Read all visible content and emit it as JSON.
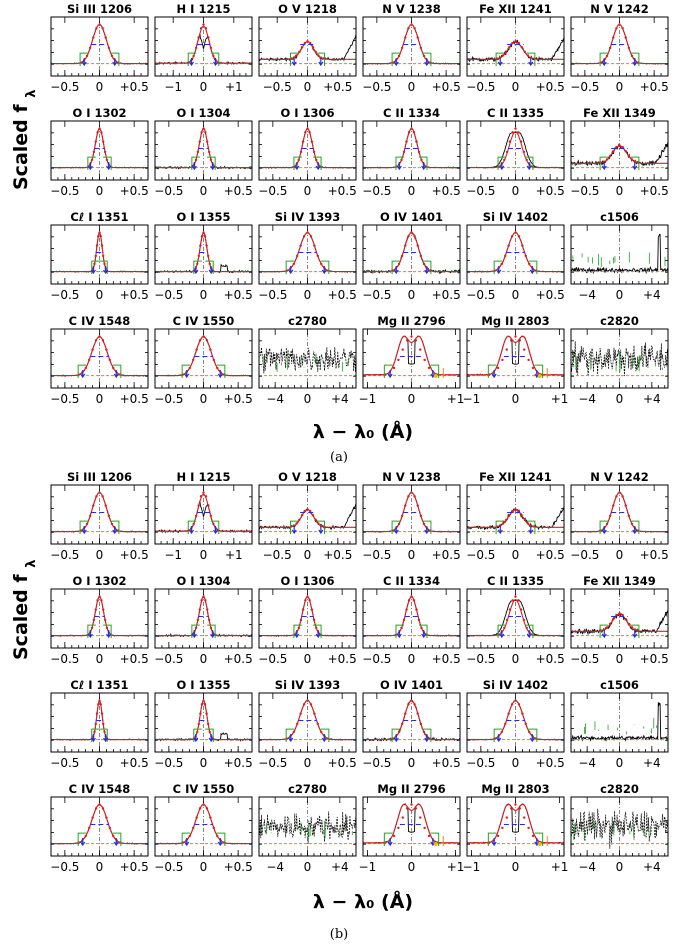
{
  "colors": {
    "data": "#000000",
    "fit": "#d62020",
    "centroid": "#2b2bd8",
    "background": "#e08a1e",
    "window": "#25a325",
    "marker": "#e0c000"
  },
  "chart_data": [
    {
      "type": "line",
      "label": "(a)",
      "ylabel": "Scaled f",
      "ylabel_sub": "λ",
      "xlabel": "λ − λ₀  (Å)",
      "grid": false,
      "panels": [
        {
          "title": "Si III 1206",
          "xlim": [
            -0.7,
            0.7
          ],
          "ticks": [
            -0.5,
            0,
            0.5
          ],
          "tick_labels": [
            "−0.5",
            "0",
            "+0.5"
          ],
          "kind": "line",
          "center": 0,
          "sigma": 0.1,
          "noise": 0.01
        },
        {
          "title": "H I 1215",
          "xlim": [
            -1.6,
            1.6
          ],
          "ticks": [
            -1,
            0,
            1
          ],
          "tick_labels": [
            "−1",
            "0",
            "+1"
          ],
          "kind": "lya",
          "center": 0,
          "sigma": 0.18,
          "noise": 0.02
        },
        {
          "title": "O V 1218",
          "xlim": [
            -0.8,
            0.8
          ],
          "ticks": [
            -0.5,
            0,
            0.5
          ],
          "tick_labels": [
            "−0.5",
            "0",
            "+0.5"
          ],
          "kind": "weak",
          "center": 0,
          "sigma": 0.1,
          "noise": 0.03
        },
        {
          "title": "N V 1238",
          "xlim": [
            -0.7,
            0.7
          ],
          "ticks": [
            -0.5,
            0,
            0.5
          ],
          "tick_labels": [
            "−0.5",
            "0",
            "+0.5"
          ],
          "kind": "line",
          "center": 0,
          "sigma": 0.1,
          "noise": 0.01
        },
        {
          "title": "Fe XII 1241",
          "xlim": [
            -0.7,
            0.7
          ],
          "ticks": [
            -0.5,
            0,
            0.5
          ],
          "tick_labels": [
            "−0.5",
            "0",
            "+0.5"
          ],
          "kind": "weak",
          "center": 0,
          "sigma": 0.1,
          "noise": 0.04
        },
        {
          "title": "N V 1242",
          "xlim": [
            -0.7,
            0.7
          ],
          "ticks": [
            -0.5,
            0,
            0.5
          ],
          "tick_labels": [
            "−0.5",
            "0",
            "+0.5"
          ],
          "kind": "line",
          "center": 0,
          "sigma": 0.1,
          "noise": 0.01
        },
        {
          "title": "O I 1302",
          "xlim": [
            -0.7,
            0.7
          ],
          "ticks": [
            -0.5,
            0,
            0.5
          ],
          "tick_labels": [
            "−0.5",
            "0",
            "+0.5"
          ],
          "kind": "line",
          "center": 0,
          "sigma": 0.06,
          "noise": 0.01
        },
        {
          "title": "O I 1304",
          "xlim": [
            -0.7,
            0.7
          ],
          "ticks": [
            -0.5,
            0,
            0.5
          ],
          "tick_labels": [
            "−0.5",
            "0",
            "+0.5"
          ],
          "kind": "line",
          "center": 0,
          "sigma": 0.06,
          "noise": 0.02
        },
        {
          "title": "O I 1306",
          "xlim": [
            -0.7,
            0.7
          ],
          "ticks": [
            -0.5,
            0,
            0.5
          ],
          "tick_labels": [
            "−0.5",
            "0",
            "+0.5"
          ],
          "kind": "line",
          "center": 0,
          "sigma": 0.07,
          "noise": 0.01
        },
        {
          "title": "C II 1334",
          "xlim": [
            -0.7,
            0.7
          ],
          "ticks": [
            -0.5,
            0,
            0.5
          ],
          "tick_labels": [
            "−0.5",
            "0",
            "+0.5"
          ],
          "kind": "line",
          "center": 0,
          "sigma": 0.08,
          "noise": 0.01
        },
        {
          "title": "C II 1335",
          "xlim": [
            -0.7,
            0.7
          ],
          "ticks": [
            -0.5,
            0,
            0.5
          ],
          "tick_labels": [
            "−0.5",
            "0",
            "+0.5"
          ],
          "kind": "flat",
          "center": 0,
          "sigma": 0.09,
          "noise": 0.01
        },
        {
          "title": "Fe XII 1349",
          "xlim": [
            -0.7,
            0.7
          ],
          "ticks": [
            -0.5,
            0,
            0.5
          ],
          "tick_labels": [
            "−0.5",
            "0",
            "+0.5"
          ],
          "kind": "weak",
          "center": 0,
          "sigma": 0.1,
          "noise": 0.05
        },
        {
          "title": "Cℓ I 1351",
          "xlim": [
            -0.7,
            0.7
          ],
          "ticks": [
            -0.5,
            0,
            0.5
          ],
          "tick_labels": [
            "−0.5",
            "0",
            "+0.5"
          ],
          "kind": "line",
          "center": 0,
          "sigma": 0.04,
          "noise": 0.01
        },
        {
          "title": "O I 1355",
          "xlim": [
            -0.7,
            0.7
          ],
          "ticks": [
            -0.5,
            0,
            0.5
          ],
          "tick_labels": [
            "−0.5",
            "0",
            "+0.5"
          ],
          "kind": "line",
          "center": 0,
          "sigma": 0.05,
          "noise": 0.02
        },
        {
          "title": "Si IV 1393",
          "xlim": [
            -0.7,
            0.7
          ],
          "ticks": [
            -0.5,
            0,
            0.5
          ],
          "tick_labels": [
            "−0.5",
            "0",
            "+0.5"
          ],
          "kind": "line",
          "center": 0,
          "sigma": 0.11,
          "noise": 0.01
        },
        {
          "title": "O IV 1401",
          "xlim": [
            -0.7,
            0.7
          ],
          "ticks": [
            -0.5,
            0,
            0.5
          ],
          "tick_labels": [
            "−0.5",
            "0",
            "+0.5"
          ],
          "kind": "line",
          "center": 0,
          "sigma": 0.1,
          "noise": 0.03
        },
        {
          "title": "Si IV 1402",
          "xlim": [
            -0.7,
            0.7
          ],
          "ticks": [
            -0.5,
            0,
            0.5
          ],
          "tick_labels": [
            "−0.5",
            "0",
            "+0.5"
          ],
          "kind": "line",
          "center": 0,
          "sigma": 0.11,
          "noise": 0.01
        },
        {
          "title": "c1506",
          "xlim": [
            -6,
            6
          ],
          "ticks": [
            -4,
            0,
            4
          ],
          "tick_labels": [
            "−4",
            "0",
            "+4"
          ],
          "kind": "cont",
          "center": 0,
          "sigma": 0.1,
          "noise": 0.05
        },
        {
          "title": "C IV 1548",
          "xlim": [
            -0.7,
            0.7
          ],
          "ticks": [
            -0.5,
            0,
            0.5
          ],
          "tick_labels": [
            "−0.5",
            "0",
            "+0.5"
          ],
          "kind": "line",
          "center": 0,
          "sigma": 0.11,
          "noise": 0.01
        },
        {
          "title": "C IV 1550",
          "xlim": [
            -0.7,
            0.7
          ],
          "ticks": [
            -0.5,
            0,
            0.5
          ],
          "tick_labels": [
            "−0.5",
            "0",
            "+0.5"
          ],
          "kind": "line",
          "center": 0,
          "sigma": 0.11,
          "noise": 0.01
        },
        {
          "title": "c2780",
          "xlim": [
            -6,
            6
          ],
          "ticks": [
            -4,
            0,
            4
          ],
          "tick_labels": [
            "−4",
            "0",
            "+4"
          ],
          "kind": "noise",
          "center": 0,
          "sigma": 0.1,
          "noise": 0.3
        },
        {
          "title": "Mg II 2796",
          "xlim": [
            -1.1,
            1.1
          ],
          "ticks": [
            -1,
            0,
            1
          ],
          "tick_labels": [
            "−1",
            "0",
            "+1"
          ],
          "kind": "mg",
          "center": 0,
          "sigma": 0.22,
          "noise": 0.01
        },
        {
          "title": "Mg II 2803",
          "xlim": [
            -1.1,
            1.1
          ],
          "ticks": [
            -1,
            0,
            1
          ],
          "tick_labels": [
            "−1",
            "0",
            "+1"
          ],
          "kind": "mg",
          "center": 0,
          "sigma": 0.22,
          "noise": 0.01
        },
        {
          "title": "c2820",
          "xlim": [
            -6,
            6
          ],
          "ticks": [
            -4,
            0,
            4
          ],
          "tick_labels": [
            "−4",
            "0",
            "+4"
          ],
          "kind": "noise",
          "center": 0,
          "sigma": 0.1,
          "noise": 0.35
        }
      ]
    },
    {
      "type": "line",
      "label": "(b)",
      "ylabel": "Scaled f",
      "ylabel_sub": "λ",
      "xlabel": "λ − λ₀  (Å)",
      "grid": false,
      "panels": [
        {
          "title": "Si III 1206",
          "xlim": [
            -0.7,
            0.7
          ],
          "ticks": [
            -0.5,
            0,
            0.5
          ],
          "tick_labels": [
            "−0.5",
            "0",
            "+0.5"
          ],
          "kind": "line",
          "center": 0,
          "sigma": 0.1,
          "noise": 0.01
        },
        {
          "title": "H I 1215",
          "xlim": [
            -1.6,
            1.6
          ],
          "ticks": [
            -1,
            0,
            1
          ],
          "tick_labels": [
            "−1",
            "0",
            "+1"
          ],
          "kind": "lya",
          "center": 0,
          "sigma": 0.18,
          "noise": 0.02
        },
        {
          "title": "O V 1218",
          "xlim": [
            -0.8,
            0.8
          ],
          "ticks": [
            -0.5,
            0,
            0.5
          ],
          "tick_labels": [
            "−0.5",
            "0",
            "+0.5"
          ],
          "kind": "weak",
          "center": 0,
          "sigma": 0.1,
          "noise": 0.03
        },
        {
          "title": "N V 1238",
          "xlim": [
            -0.7,
            0.7
          ],
          "ticks": [
            -0.5,
            0,
            0.5
          ],
          "tick_labels": [
            "−0.5",
            "0",
            "+0.5"
          ],
          "kind": "line",
          "center": 0,
          "sigma": 0.1,
          "noise": 0.01
        },
        {
          "title": "Fe XII 1241",
          "xlim": [
            -0.7,
            0.7
          ],
          "ticks": [
            -0.5,
            0,
            0.5
          ],
          "tick_labels": [
            "−0.5",
            "0",
            "+0.5"
          ],
          "kind": "weak",
          "center": 0,
          "sigma": 0.1,
          "noise": 0.04
        },
        {
          "title": "N V 1242",
          "xlim": [
            -0.7,
            0.7
          ],
          "ticks": [
            -0.5,
            0,
            0.5
          ],
          "tick_labels": [
            "−0.5",
            "0",
            "+0.5"
          ],
          "kind": "line",
          "center": 0,
          "sigma": 0.1,
          "noise": 0.01
        },
        {
          "title": "O I 1302",
          "xlim": [
            -0.7,
            0.7
          ],
          "ticks": [
            -0.5,
            0,
            0.5
          ],
          "tick_labels": [
            "−0.5",
            "0",
            "+0.5"
          ],
          "kind": "line",
          "center": 0,
          "sigma": 0.06,
          "noise": 0.01
        },
        {
          "title": "O I 1304",
          "xlim": [
            -0.7,
            0.7
          ],
          "ticks": [
            -0.5,
            0,
            0.5
          ],
          "tick_labels": [
            "−0.5",
            "0",
            "+0.5"
          ],
          "kind": "line",
          "center": 0,
          "sigma": 0.06,
          "noise": 0.02
        },
        {
          "title": "O I 1306",
          "xlim": [
            -0.7,
            0.7
          ],
          "ticks": [
            -0.5,
            0,
            0.5
          ],
          "tick_labels": [
            "−0.5",
            "0",
            "+0.5"
          ],
          "kind": "line",
          "center": 0,
          "sigma": 0.07,
          "noise": 0.01
        },
        {
          "title": "C II 1334",
          "xlim": [
            -0.7,
            0.7
          ],
          "ticks": [
            -0.5,
            0,
            0.5
          ],
          "tick_labels": [
            "−0.5",
            "0",
            "+0.5"
          ],
          "kind": "line",
          "center": 0,
          "sigma": 0.08,
          "noise": 0.01
        },
        {
          "title": "C II 1335",
          "xlim": [
            -0.7,
            0.7
          ],
          "ticks": [
            -0.5,
            0,
            0.5
          ],
          "tick_labels": [
            "−0.5",
            "0",
            "+0.5"
          ],
          "kind": "flat",
          "center": 0,
          "sigma": 0.09,
          "noise": 0.01
        },
        {
          "title": "Fe XII 1349",
          "xlim": [
            -0.7,
            0.7
          ],
          "ticks": [
            -0.5,
            0,
            0.5
          ],
          "tick_labels": [
            "−0.5",
            "0",
            "+0.5"
          ],
          "kind": "weak",
          "center": 0,
          "sigma": 0.1,
          "noise": 0.05
        },
        {
          "title": "Cℓ I 1351",
          "xlim": [
            -0.7,
            0.7
          ],
          "ticks": [
            -0.5,
            0,
            0.5
          ],
          "tick_labels": [
            "−0.5",
            "0",
            "+0.5"
          ],
          "kind": "line",
          "center": 0,
          "sigma": 0.04,
          "noise": 0.01
        },
        {
          "title": "O I 1355",
          "xlim": [
            -0.7,
            0.7
          ],
          "ticks": [
            -0.5,
            0,
            0.5
          ],
          "tick_labels": [
            "−0.5",
            "0",
            "+0.5"
          ],
          "kind": "line",
          "center": 0,
          "sigma": 0.05,
          "noise": 0.02
        },
        {
          "title": "Si IV 1393",
          "xlim": [
            -0.7,
            0.7
          ],
          "ticks": [
            -0.5,
            0,
            0.5
          ],
          "tick_labels": [
            "−0.5",
            "0",
            "+0.5"
          ],
          "kind": "line",
          "center": 0,
          "sigma": 0.11,
          "noise": 0.01
        },
        {
          "title": "O IV 1401",
          "xlim": [
            -0.7,
            0.7
          ],
          "ticks": [
            -0.5,
            0,
            0.5
          ],
          "tick_labels": [
            "−0.5",
            "0",
            "+0.5"
          ],
          "kind": "line",
          "center": 0,
          "sigma": 0.1,
          "noise": 0.03
        },
        {
          "title": "Si IV 1402",
          "xlim": [
            -0.7,
            0.7
          ],
          "ticks": [
            -0.5,
            0,
            0.5
          ],
          "tick_labels": [
            "−0.5",
            "0",
            "+0.5"
          ],
          "kind": "line",
          "center": 0,
          "sigma": 0.11,
          "noise": 0.01
        },
        {
          "title": "c1506",
          "xlim": [
            -6,
            6
          ],
          "ticks": [
            -4,
            0,
            4
          ],
          "tick_labels": [
            "−4",
            "0",
            "+4"
          ],
          "kind": "cont",
          "center": 0,
          "sigma": 0.1,
          "noise": 0.05
        },
        {
          "title": "C IV 1548",
          "xlim": [
            -0.7,
            0.7
          ],
          "ticks": [
            -0.5,
            0,
            0.5
          ],
          "tick_labels": [
            "−0.5",
            "0",
            "+0.5"
          ],
          "kind": "line",
          "center": 0,
          "sigma": 0.11,
          "noise": 0.01
        },
        {
          "title": "C IV 1550",
          "xlim": [
            -0.7,
            0.7
          ],
          "ticks": [
            -0.5,
            0,
            0.5
          ],
          "tick_labels": [
            "−0.5",
            "0",
            "+0.5"
          ],
          "kind": "line",
          "center": 0,
          "sigma": 0.11,
          "noise": 0.01
        },
        {
          "title": "c2780",
          "xlim": [
            -6,
            6
          ],
          "ticks": [
            -4,
            0,
            4
          ],
          "tick_labels": [
            "−4",
            "0",
            "+4"
          ],
          "kind": "noise",
          "center": 0,
          "sigma": 0.1,
          "noise": 0.3
        },
        {
          "title": "Mg II 2796",
          "xlim": [
            -1.1,
            1.1
          ],
          "ticks": [
            -1,
            0,
            1
          ],
          "tick_labels": [
            "−1",
            "0",
            "+1"
          ],
          "kind": "mg",
          "center": 0,
          "sigma": 0.22,
          "noise": 0.01
        },
        {
          "title": "Mg II 2803",
          "xlim": [
            -1.1,
            1.1
          ],
          "ticks": [
            -1,
            0,
            1
          ],
          "tick_labels": [
            "−1",
            "0",
            "+1"
          ],
          "kind": "mg",
          "center": 0,
          "sigma": 0.22,
          "noise": 0.01
        },
        {
          "title": "c2820",
          "xlim": [
            -6,
            6
          ],
          "ticks": [
            -4,
            0,
            4
          ],
          "tick_labels": [
            "−4",
            "0",
            "+4"
          ],
          "kind": "noise",
          "center": 0,
          "sigma": 0.35,
          "noise": 0.35
        }
      ]
    }
  ]
}
